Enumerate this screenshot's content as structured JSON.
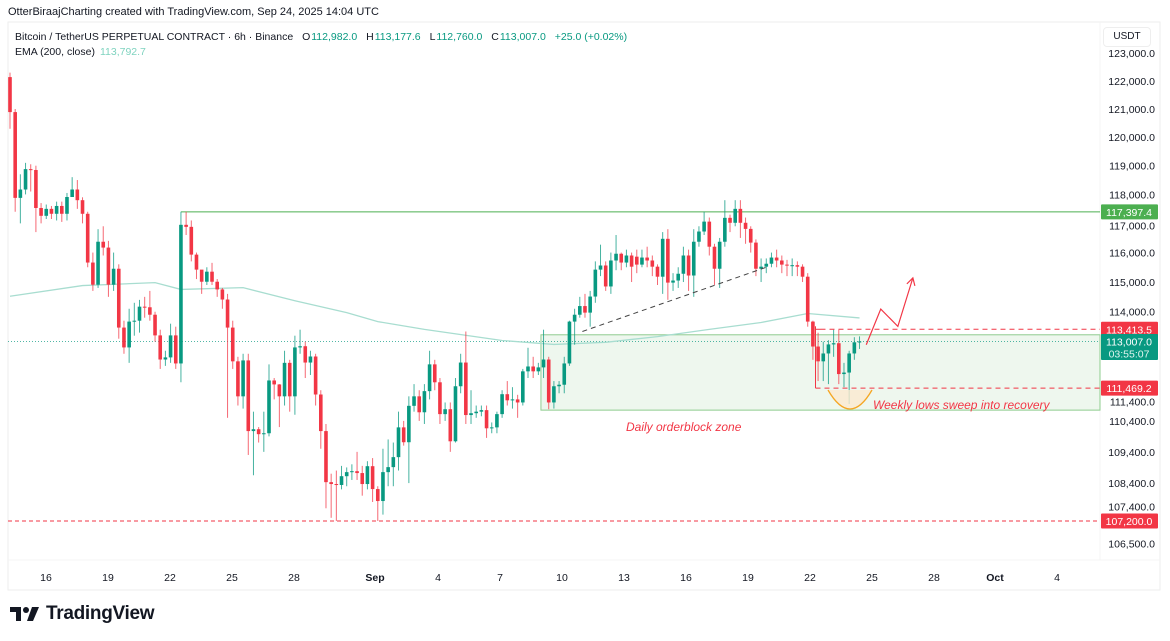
{
  "attribution": "OtterBiraajCharting created with TradingView.com, Sep 24, 2025 14:04 UTC",
  "legend": {
    "symbol": "Bitcoin / TetherUS PERPETUAL CONTRACT · 6h · Binance",
    "o_label": "O",
    "o": "112,982.0",
    "h_label": "H",
    "h": "113,177.6",
    "l_label": "L",
    "l": "112,760.0",
    "c_label": "C",
    "c": "113,007.0",
    "change": "+25.0 (+0.02%)",
    "ema_label": "EMA (200, close)",
    "ema_value": "113,792.7"
  },
  "currency": "USDT",
  "logo_text": "TradingView",
  "colors": {
    "up": "#089981",
    "down": "#f23645",
    "ema": "#a8ddd0",
    "level_green": "#4caf50",
    "annotation": "#f23645",
    "zone_fill": "#eef7ee",
    "zone_border": "#8fcc8f",
    "sweep": "#f5a623"
  },
  "chart_data": {
    "type": "candlestick",
    "scale": "log",
    "ylim": [
      106300,
      123200
    ],
    "y_ticks": [
      {
        "value": 123000,
        "label": "123,000.0"
      },
      {
        "value": 122000,
        "label": "122,000.0"
      },
      {
        "value": 121000,
        "label": "121,000.0"
      },
      {
        "value": 120000,
        "label": "120,000.0"
      },
      {
        "value": 119000,
        "label": "119,000.0"
      },
      {
        "value": 118000,
        "label": "118,000.0"
      },
      {
        "value": 117000,
        "label": "117,000.0"
      },
      {
        "value": 116000,
        "label": "116,000.0"
      },
      {
        "value": 115000,
        "label": "115,000.0"
      },
      {
        "value": 114000,
        "label": "114,000.0"
      },
      {
        "value": 111400,
        "label": "111,400.0"
      },
      {
        "value": 110400,
        "label": "110,400.0"
      },
      {
        "value": 109400,
        "label": "109,400.0"
      },
      {
        "value": 108400,
        "label": "108,400.0"
      },
      {
        "value": 107400,
        "label": "107,400.0"
      },
      {
        "value": 106500,
        "label": "106,500.0"
      }
    ],
    "x_ticks": [
      "16",
      "19",
      "22",
      "25",
      "28",
      "Sep",
      "4",
      "7",
      "10",
      "13",
      "16",
      "19",
      "22",
      "25",
      "28",
      "Oct",
      "4"
    ],
    "candles_ohlc": [
      [
        122140,
        122300,
        120300,
        120890
      ],
      [
        120890,
        121000,
        117400,
        117880
      ],
      [
        117880,
        118700,
        117000,
        118170
      ],
      [
        118170,
        119100,
        118000,
        118880
      ],
      [
        118880,
        119050,
        118100,
        118850
      ],
      [
        118850,
        119000,
        116700,
        117530
      ],
      [
        117530,
        117700,
        117000,
        117260
      ],
      [
        117260,
        117650,
        117150,
        117500
      ],
      [
        117500,
        117600,
        117150,
        117330
      ],
      [
        117330,
        117750,
        117100,
        117600
      ],
      [
        117600,
        117750,
        117050,
        117330
      ],
      [
        117330,
        118050,
        117100,
        117910
      ],
      [
        117910,
        118600,
        117950,
        118170
      ],
      [
        118170,
        118500,
        117500,
        117800
      ],
      [
        117800,
        117900,
        117000,
        117330
      ],
      [
        117330,
        117400,
        115500,
        115660
      ],
      [
        115660,
        116000,
        114700,
        114910
      ],
      [
        114910,
        116800,
        114800,
        116370
      ],
      [
        116370,
        116900,
        115900,
        116170
      ],
      [
        116170,
        116400,
        114500,
        114910
      ],
      [
        114910,
        116000,
        114700,
        115450
      ],
      [
        115450,
        115600,
        113100,
        113470
      ],
      [
        113470,
        113700,
        112600,
        112810
      ],
      [
        112810,
        114100,
        112300,
        113670
      ],
      [
        113670,
        114300,
        113200,
        113700
      ],
      [
        113700,
        114400,
        113300,
        114170
      ],
      [
        114170,
        114500,
        113800,
        114150
      ],
      [
        114150,
        114700,
        113700,
        113900
      ],
      [
        113900,
        114000,
        113000,
        113210
      ],
      [
        113210,
        113400,
        112100,
        112410
      ],
      [
        112410,
        112700,
        112200,
        112480
      ],
      [
        112480,
        113600,
        112300,
        113210
      ],
      [
        113210,
        113500,
        112100,
        112280
      ],
      [
        112280,
        117400,
        111660,
        116950
      ],
      [
        116950,
        117400,
        116600,
        116880
      ],
      [
        116880,
        117100,
        115700,
        115930
      ],
      [
        115930,
        116000,
        115100,
        115420
      ],
      [
        115420,
        115400,
        114600,
        115010
      ],
      [
        115010,
        115500,
        114900,
        115350
      ],
      [
        115350,
        115650,
        114900,
        115010
      ],
      [
        115010,
        115100,
        114500,
        114750
      ],
      [
        114750,
        114800,
        114100,
        114410
      ],
      [
        114410,
        114600,
        110500,
        113470
      ],
      [
        113470,
        113700,
        112100,
        112350
      ],
      [
        112350,
        112500,
        110900,
        111200
      ],
      [
        111200,
        112600,
        110800,
        112380
      ],
      [
        112380,
        112600,
        109300,
        110070
      ],
      [
        110070,
        110700,
        108650,
        110130
      ],
      [
        110130,
        110200,
        109700,
        109970
      ],
      [
        109970,
        110700,
        109400,
        110000
      ],
      [
        110000,
        112250,
        109900,
        111720
      ],
      [
        111720,
        111800,
        111100,
        111590
      ],
      [
        111590,
        111600,
        110200,
        111200
      ],
      [
        111200,
        112700,
        110900,
        112300
      ],
      [
        112300,
        112400,
        110700,
        111200
      ],
      [
        111200,
        113200,
        110600,
        112810
      ],
      [
        112810,
        113400,
        112600,
        112850
      ],
      [
        112850,
        113000,
        111800,
        112310
      ],
      [
        112310,
        112700,
        111900,
        112510
      ],
      [
        112510,
        112600,
        110900,
        111260
      ],
      [
        111260,
        111400,
        109500,
        110070
      ],
      [
        110070,
        110300,
        107600,
        108430
      ],
      [
        108430,
        108700,
        107300,
        108370
      ],
      [
        108370,
        108800,
        107200,
        108340
      ],
      [
        108340,
        108950,
        108200,
        108620
      ],
      [
        108620,
        108900,
        108300,
        108750
      ],
      [
        108750,
        109000,
        108500,
        108780
      ],
      [
        108780,
        109400,
        108500,
        108720
      ],
      [
        108720,
        108950,
        108000,
        108370
      ],
      [
        108370,
        109100,
        108200,
        108940
      ],
      [
        108940,
        109200,
        107800,
        108210
      ],
      [
        108210,
        108300,
        107200,
        107830
      ],
      [
        107830,
        109500,
        107400,
        108750
      ],
      [
        108750,
        109800,
        108300,
        108910
      ],
      [
        108910,
        109700,
        108300,
        109230
      ],
      [
        109230,
        110700,
        108800,
        110190
      ],
      [
        110190,
        110400,
        109600,
        109710
      ],
      [
        109710,
        111200,
        108400,
        110890
      ],
      [
        110890,
        111600,
        110700,
        111200
      ],
      [
        111200,
        111400,
        110400,
        110680
      ],
      [
        110680,
        111600,
        110300,
        111370
      ],
      [
        111370,
        112700,
        111100,
        112250
      ],
      [
        112250,
        112400,
        111400,
        111660
      ],
      [
        111660,
        111800,
        110300,
        110620
      ],
      [
        110620,
        111000,
        110400,
        110780
      ],
      [
        110780,
        111000,
        109400,
        109740
      ],
      [
        109740,
        111800,
        109700,
        111530
      ],
      [
        111530,
        112600,
        111300,
        112310
      ],
      [
        112310,
        113340,
        110300,
        110590
      ],
      [
        110590,
        111400,
        110300,
        110650
      ],
      [
        110650,
        110900,
        110500,
        110700
      ],
      [
        110700,
        110900,
        110550,
        110750
      ],
      [
        110750,
        110900,
        109850,
        110160
      ],
      [
        110160,
        110350,
        110000,
        110190
      ],
      [
        110190,
        110700,
        110000,
        110620
      ],
      [
        110620,
        111400,
        110500,
        111270
      ],
      [
        111270,
        111700,
        110900,
        111070
      ],
      [
        111070,
        111500,
        110800,
        111100
      ],
      [
        111100,
        111250,
        110500,
        111000
      ],
      [
        111000,
        112100,
        110900,
        112020
      ],
      [
        112020,
        112800,
        111800,
        112180
      ],
      [
        112180,
        112500,
        111800,
        112020
      ],
      [
        112020,
        112300,
        111900,
        112150
      ],
      [
        112150,
        113400,
        111800,
        112410
      ],
      [
        112410,
        112500,
        110780,
        111000
      ],
      [
        111000,
        111700,
        110800,
        111530
      ],
      [
        111530,
        111700,
        111300,
        111580
      ],
      [
        111580,
        112500,
        111300,
        112280
      ],
      [
        112280,
        113700,
        112200,
        113670
      ],
      [
        113670,
        114100,
        112900,
        113900
      ],
      [
        113900,
        114500,
        113800,
        114190
      ],
      [
        114190,
        114600,
        113800,
        113970
      ],
      [
        113970,
        114700,
        113500,
        114510
      ],
      [
        114510,
        115700,
        114300,
        115420
      ],
      [
        115420,
        116270,
        115200,
        115560
      ],
      [
        115560,
        115700,
        114700,
        114850
      ],
      [
        114850,
        116000,
        114600,
        115730
      ],
      [
        115730,
        116600,
        115400,
        115960
      ],
      [
        115960,
        116000,
        115400,
        115660
      ],
      [
        115660,
        116100,
        115500,
        115900
      ],
      [
        115900,
        116000,
        115000,
        115520
      ],
      [
        115860,
        116100,
        115300,
        115590
      ],
      [
        115590,
        116100,
        115500,
        115830
      ],
      [
        115830,
        116200,
        115500,
        115730
      ],
      [
        115730,
        115900,
        115200,
        115520
      ],
      [
        115520,
        115600,
        114900,
        115180
      ],
      [
        115180,
        116700,
        114600,
        116470
      ],
      [
        116470,
        116800,
        114400,
        114980
      ],
      [
        114980,
        115300,
        114700,
        115050
      ],
      [
        115050,
        115500,
        114800,
        115280
      ],
      [
        115280,
        116200,
        115000,
        115900
      ],
      [
        115900,
        116100,
        114700,
        115220
      ],
      [
        115220,
        116800,
        114500,
        116370
      ],
      [
        116370,
        116900,
        116200,
        116720
      ],
      [
        116720,
        117400,
        116600,
        117060
      ],
      [
        117060,
        117200,
        115900,
        116200
      ],
      [
        116200,
        116300,
        114900,
        115450
      ],
      [
        115450,
        116500,
        114800,
        116370
      ],
      [
        116370,
        117800,
        116200,
        117190
      ],
      [
        117190,
        117300,
        116700,
        117020
      ],
      [
        117020,
        117800,
        116900,
        117500
      ],
      [
        117500,
        117800,
        116500,
        117020
      ],
      [
        117020,
        117200,
        116300,
        116810
      ],
      [
        116810,
        116900,
        116000,
        116340
      ],
      [
        116340,
        116450,
        115200,
        115450
      ],
      [
        115450,
        115800,
        115000,
        115520
      ],
      [
        115520,
        115800,
        115300,
        115620
      ],
      [
        115620,
        116000,
        115500,
        115830
      ],
      [
        115830,
        116100,
        115500,
        115730
      ],
      [
        115730,
        115900,
        115300,
        115590
      ],
      [
        115590,
        115750,
        115200,
        115560
      ],
      [
        115560,
        115800,
        115200,
        115570
      ],
      [
        115570,
        115700,
        115200,
        115520
      ],
      [
        115520,
        115600,
        115000,
        115180
      ],
      [
        115180,
        115300,
        113500,
        113670
      ],
      [
        113670,
        113700,
        112400,
        112840
      ],
      [
        112840,
        113300,
        111700,
        112350
      ],
      [
        112350,
        113000,
        111700,
        112610
      ],
      [
        112610,
        113050,
        111600,
        112910
      ],
      [
        112910,
        113400,
        112500,
        112950
      ],
      [
        112950,
        113400,
        111600,
        111930
      ],
      [
        111930,
        112300,
        111500,
        111980
      ],
      [
        111980,
        112700,
        110950,
        112610
      ],
      [
        112610,
        113150,
        112400,
        112980
      ],
      [
        112982,
        113177.6,
        112760,
        113007
      ]
    ],
    "ema_200": [
      [
        0,
        114520
      ],
      [
        14,
        114880
      ],
      [
        28,
        114980
      ],
      [
        33,
        114750
      ],
      [
        45,
        114810
      ],
      [
        55,
        114370
      ],
      [
        65,
        113970
      ],
      [
        71,
        113670
      ],
      [
        80,
        113410
      ],
      [
        95,
        113040
      ],
      [
        105,
        112910
      ],
      [
        115,
        112980
      ],
      [
        125,
        113170
      ],
      [
        135,
        113410
      ],
      [
        145,
        113640
      ],
      [
        154,
        113940
      ],
      [
        164,
        113792.7
      ]
    ],
    "price_labels": [
      {
        "value": 117397.4,
        "label": "117,397.4",
        "color": "#4caf50"
      },
      {
        "value": 113413.5,
        "label": "113,413.5",
        "color": "#f23645"
      },
      {
        "value": 113007.0,
        "label": "113,007.0",
        "sub": "03:55:07",
        "color": "#089981"
      },
      {
        "value": 111469.2,
        "label": "111,469.2",
        "color": "#f23645"
      },
      {
        "value": 107200.0,
        "label": "107,200.0",
        "color": "#f23645"
      }
    ],
    "drawings": {
      "resistance_level": {
        "price": 117397.4,
        "from_index": 33
      },
      "support_level": {
        "price": 107200.0
      },
      "orderblock_zone": {
        "from_index": 102.5,
        "top": 113230,
        "bottom": 110750,
        "label": "Daily orderblock zone"
      },
      "sweep_box": {
        "from_index": 155.5,
        "top": 113413.5,
        "bottom": 111469.2
      },
      "trendline": [
        [
          110.5,
          113340
        ],
        [
          146,
          115500
        ]
      ],
      "projection_arrow": [
        [
          165.3,
          112900
        ],
        [
          168.1,
          114090
        ],
        [
          171.4,
          113510
        ],
        [
          174.3,
          115140
        ]
      ],
      "sweep_annotation": "Weekly lows sweep into recovery"
    }
  }
}
